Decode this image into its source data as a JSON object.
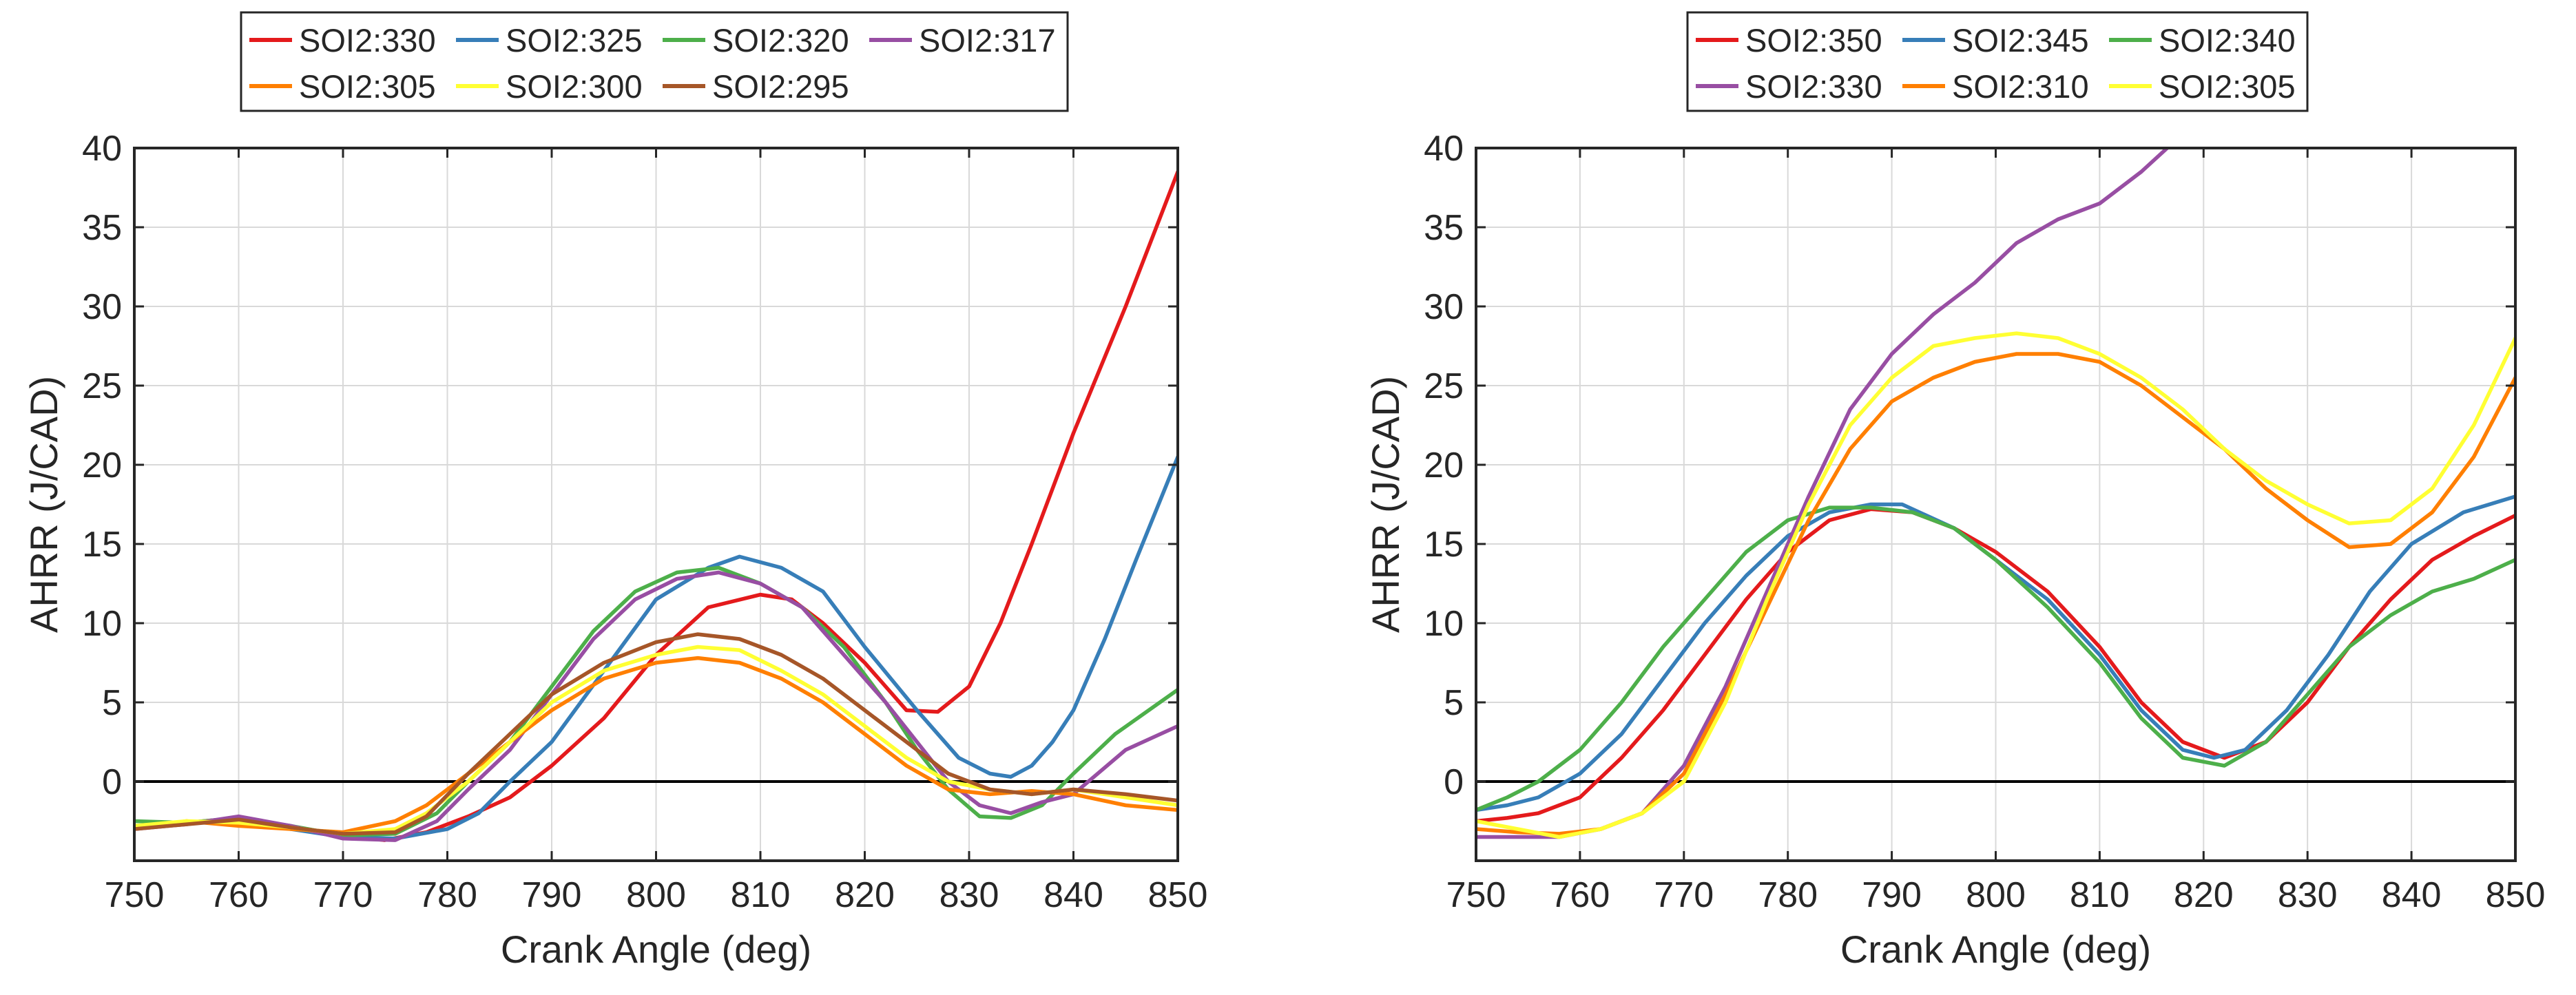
{
  "chart_data": [
    {
      "type": "line",
      "title": "",
      "xlabel": "Crank Angle (deg)",
      "ylabel": "AHRR (J/CAD)",
      "xlim": [
        750,
        850
      ],
      "ylim": [
        -5,
        40
      ],
      "xticks": [
        750,
        760,
        770,
        780,
        790,
        800,
        810,
        820,
        830,
        840,
        850
      ],
      "yticks": [
        0,
        5,
        10,
        15,
        20,
        25,
        30,
        35,
        40
      ],
      "xtick_labels": [
        "750",
        "760",
        "770",
        "780",
        "790",
        "800",
        "810",
        "820",
        "830",
        "840",
        "850"
      ],
      "ytick_labels": [
        "0",
        "5",
        "10",
        "15",
        "20",
        "25",
        "30",
        "35",
        "40"
      ],
      "grid": true,
      "zero_line": 0,
      "legend": {
        "position": "top",
        "columns": 4,
        "entries": [
          "SOI2:330",
          "SOI2:325",
          "SOI2:320",
          "SOI2:317",
          "SOI2:305",
          "SOI2:300",
          "SOI2:295"
        ]
      },
      "series": [
        {
          "name": "SOI2:330",
          "color": "#e41a1c",
          "x": [
            750,
            755,
            760,
            765,
            770,
            774,
            778,
            782,
            786,
            790,
            795,
            800,
            805,
            810,
            813,
            816,
            820,
            824,
            827,
            830,
            833,
            836,
            840,
            845,
            850
          ],
          "y": [
            -2.9,
            -2.6,
            -2.3,
            -2.9,
            -3.4,
            -3.7,
            -3.2,
            -2.2,
            -1.0,
            1.0,
            4.0,
            8.0,
            11.0,
            11.8,
            11.5,
            10.0,
            7.5,
            4.5,
            4.4,
            6.0,
            10.0,
            15.0,
            22.0,
            30.0,
            38.5
          ]
        },
        {
          "name": "SOI2:325",
          "color": "#377eb8",
          "x": [
            750,
            755,
            760,
            765,
            770,
            775,
            780,
            783,
            786,
            790,
            795,
            800,
            805,
            808,
            812,
            816,
            820,
            825,
            829,
            832,
            834,
            836,
            838,
            840,
            843,
            846,
            850
          ],
          "y": [
            -2.9,
            -2.6,
            -2.5,
            -3.0,
            -3.5,
            -3.6,
            -3.0,
            -2.0,
            0.0,
            2.5,
            7.0,
            11.5,
            13.5,
            14.2,
            13.5,
            12.0,
            8.5,
            4.5,
            1.5,
            0.5,
            0.3,
            1.0,
            2.5,
            4.5,
            9.0,
            14.0,
            20.5
          ]
        },
        {
          "name": "SOI2:320",
          "color": "#4daf4a",
          "x": [
            750,
            755,
            760,
            765,
            770,
            775,
            779,
            782,
            786,
            790,
            794,
            798,
            802,
            806,
            810,
            814,
            818,
            822,
            825,
            828,
            831,
            834,
            837,
            840,
            844,
            850
          ],
          "y": [
            -2.5,
            -2.6,
            -2.3,
            -2.8,
            -3.4,
            -3.3,
            -2.0,
            0.0,
            2.5,
            6.0,
            9.5,
            12.0,
            13.2,
            13.5,
            12.5,
            11.0,
            8.5,
            5.0,
            2.0,
            -0.5,
            -2.2,
            -2.3,
            -1.5,
            0.5,
            3.0,
            5.8
          ]
        },
        {
          "name": "SOI2:317",
          "color": "#984ea3",
          "x": [
            750,
            755,
            760,
            765,
            770,
            775,
            779,
            782,
            786,
            790,
            794,
            798,
            802,
            806,
            810,
            814,
            818,
            822,
            825,
            828,
            831,
            834,
            837,
            840,
            845,
            850
          ],
          "y": [
            -3.0,
            -2.7,
            -2.2,
            -2.8,
            -3.6,
            -3.7,
            -2.5,
            -0.5,
            2.0,
            5.5,
            9.0,
            11.5,
            12.8,
            13.2,
            12.5,
            11.0,
            8.0,
            5.0,
            2.5,
            0.0,
            -1.5,
            -2.0,
            -1.3,
            -0.8,
            2.0,
            3.5
          ]
        },
        {
          "name": "SOI2:305",
          "color": "#ff7f00",
          "x": [
            750,
            755,
            760,
            765,
            770,
            775,
            778,
            782,
            786,
            790,
            795,
            800,
            804,
            808,
            812,
            816,
            820,
            824,
            828,
            832,
            836,
            840,
            845,
            850
          ],
          "y": [
            -3.0,
            -2.5,
            -2.8,
            -3.0,
            -3.2,
            -2.5,
            -1.5,
            0.5,
            2.5,
            4.5,
            6.5,
            7.5,
            7.8,
            7.5,
            6.5,
            5.0,
            3.0,
            1.0,
            -0.5,
            -0.8,
            -0.6,
            -0.8,
            -1.5,
            -1.8
          ]
        },
        {
          "name": "SOI2:300",
          "color": "#ffff33",
          "x": [
            750,
            755,
            760,
            765,
            770,
            775,
            778,
            782,
            786,
            790,
            795,
            800,
            804,
            808,
            812,
            816,
            820,
            824,
            828,
            832,
            836,
            840,
            845,
            850
          ],
          "y": [
            -2.8,
            -2.5,
            -2.6,
            -2.9,
            -3.3,
            -3.0,
            -2.0,
            0.0,
            2.5,
            5.0,
            7.0,
            8.0,
            8.5,
            8.3,
            7.0,
            5.5,
            3.5,
            1.5,
            0.0,
            -0.5,
            -0.8,
            -0.5,
            -1.0,
            -1.5
          ]
        },
        {
          "name": "SOI2:295",
          "color": "#a65628",
          "x": [
            750,
            755,
            760,
            765,
            770,
            775,
            778,
            782,
            786,
            790,
            795,
            800,
            804,
            808,
            812,
            816,
            820,
            824,
            828,
            832,
            836,
            840,
            845,
            850
          ],
          "y": [
            -3.0,
            -2.7,
            -2.4,
            -2.9,
            -3.3,
            -3.2,
            -2.2,
            0.5,
            3.0,
            5.5,
            7.5,
            8.8,
            9.3,
            9.0,
            8.0,
            6.5,
            4.5,
            2.5,
            0.5,
            -0.5,
            -0.8,
            -0.5,
            -0.8,
            -1.2
          ]
        }
      ]
    },
    {
      "type": "line",
      "title": "",
      "xlabel": "Crank Angle (deg)",
      "ylabel": "AHRR (J/CAD)",
      "xlim": [
        750,
        850
      ],
      "ylim": [
        -5,
        40
      ],
      "xticks": [
        750,
        760,
        770,
        780,
        790,
        800,
        810,
        820,
        830,
        840,
        850
      ],
      "yticks": [
        0,
        5,
        10,
        15,
        20,
        25,
        30,
        35,
        40
      ],
      "xtick_labels": [
        "750",
        "760",
        "770",
        "780",
        "790",
        "800",
        "810",
        "820",
        "830",
        "840",
        "850"
      ],
      "ytick_labels": [
        "0",
        "5",
        "10",
        "15",
        "20",
        "25",
        "30",
        "35",
        "40"
      ],
      "grid": true,
      "zero_line": 0,
      "legend": {
        "position": "top",
        "columns": 3,
        "entries": [
          "SOI2:350",
          "SOI2:345",
          "SOI2:340",
          "SOI2:330",
          "SOI2:310",
          "SOI2:305"
        ]
      },
      "series": [
        {
          "name": "SOI2:350",
          "color": "#e41a1c",
          "x": [
            750,
            753,
            756,
            760,
            764,
            768,
            772,
            776,
            780,
            784,
            788,
            792,
            796,
            800,
            805,
            810,
            814,
            818,
            822,
            826,
            830,
            834,
            838,
            842,
            846,
            850
          ],
          "y": [
            -2.5,
            -2.3,
            -2.0,
            -1.0,
            1.5,
            4.5,
            8.0,
            11.5,
            14.5,
            16.5,
            17.2,
            17.0,
            16.0,
            14.5,
            12.0,
            8.5,
            5.0,
            2.5,
            1.5,
            2.5,
            5.0,
            8.5,
            11.5,
            14.0,
            15.5,
            16.8
          ]
        },
        {
          "name": "SOI2:345",
          "color": "#377eb8",
          "x": [
            750,
            753,
            756,
            760,
            764,
            768,
            772,
            776,
            780,
            784,
            788,
            791,
            796,
            800,
            805,
            810,
            814,
            818,
            821,
            824,
            828,
            832,
            836,
            840,
            845,
            850
          ],
          "y": [
            -1.8,
            -1.5,
            -1.0,
            0.5,
            3.0,
            6.5,
            10.0,
            13.0,
            15.5,
            17.0,
            17.5,
            17.5,
            16.0,
            14.0,
            11.5,
            8.0,
            4.5,
            2.0,
            1.5,
            2.0,
            4.5,
            8.0,
            12.0,
            15.0,
            17.0,
            18.0
          ]
        },
        {
          "name": "SOI2:340",
          "color": "#4daf4a",
          "x": [
            750,
            753,
            756,
            760,
            764,
            768,
            772,
            776,
            780,
            784,
            788,
            792,
            796,
            800,
            805,
            810,
            814,
            818,
            822,
            826,
            830,
            834,
            838,
            842,
            846,
            850
          ],
          "y": [
            -1.8,
            -1.0,
            0.0,
            2.0,
            5.0,
            8.5,
            11.5,
            14.5,
            16.5,
            17.3,
            17.3,
            17.0,
            16.0,
            14.0,
            11.0,
            7.5,
            4.0,
            1.5,
            1.0,
            2.5,
            5.5,
            8.5,
            10.5,
            12.0,
            12.8,
            14.0
          ]
        },
        {
          "name": "SOI2:330",
          "color": "#984ea3",
          "x": [
            750,
            754,
            758,
            762,
            766,
            770,
            774,
            778,
            782,
            786,
            790,
            794,
            798,
            802,
            806,
            810,
            814,
            816.5
          ],
          "y": [
            -3.5,
            -3.5,
            -3.5,
            -3.0,
            -2.0,
            1.0,
            6.0,
            12.0,
            18.0,
            23.5,
            27.0,
            29.5,
            31.5,
            34.0,
            35.5,
            36.5,
            38.5,
            40.0
          ]
        },
        {
          "name": "SOI2:310",
          "color": "#ff7f00",
          "x": [
            750,
            754,
            758,
            762,
            766,
            770,
            774,
            778,
            782,
            786,
            790,
            794,
            798,
            802,
            806,
            810,
            814,
            818,
            822,
            826,
            830,
            834,
            838,
            842,
            846,
            850
          ],
          "y": [
            -3.0,
            -3.2,
            -3.3,
            -3.0,
            -2.0,
            0.5,
            5.5,
            11.0,
            16.5,
            21.0,
            24.0,
            25.5,
            26.5,
            27.0,
            27.0,
            26.5,
            25.0,
            23.0,
            21.0,
            18.5,
            16.5,
            14.8,
            15.0,
            17.0,
            20.5,
            25.5
          ]
        },
        {
          "name": "SOI2:305",
          "color": "#ffff33",
          "x": [
            750,
            754,
            758,
            762,
            766,
            770,
            774,
            778,
            782,
            786,
            790,
            794,
            798,
            802,
            806,
            810,
            814,
            818,
            822,
            826,
            830,
            834,
            838,
            842,
            846,
            850
          ],
          "y": [
            -2.5,
            -3.0,
            -3.5,
            -3.0,
            -2.0,
            0.0,
            5.0,
            11.5,
            17.5,
            22.5,
            25.5,
            27.5,
            28.0,
            28.3,
            28.0,
            27.0,
            25.5,
            23.5,
            21.0,
            19.0,
            17.5,
            16.3,
            16.5,
            18.5,
            22.5,
            28.0
          ]
        }
      ]
    }
  ]
}
